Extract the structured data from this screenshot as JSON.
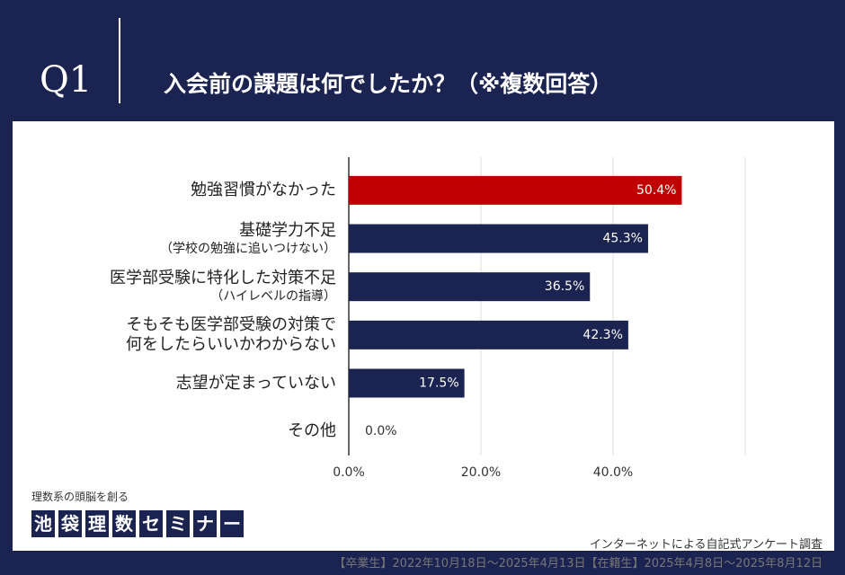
{
  "header": {
    "number": "Q1",
    "title": "入会前の課題は何でしたか？（※複数回答）"
  },
  "chart_data": {
    "type": "bar",
    "orientation": "horizontal",
    "categories": [
      "勉強習慣がなかった",
      "基礎学力不足",
      "医学部受験に特化した対策不足",
      "そもそも医学部受験の対策で\n何をしたらいいかわからない",
      "志望が定まっていない",
      "その他"
    ],
    "category_notes": [
      null,
      "（学校の勉強に追いつけない）",
      "（ハイレベルの指導）",
      null,
      null,
      null
    ],
    "values": [
      50.4,
      45.3,
      36.5,
      42.3,
      17.5,
      0.0
    ],
    "value_labels": [
      "50.4%",
      "45.3%",
      "36.5%",
      "42.3%",
      "17.5%",
      "0.0%"
    ],
    "colors": [
      "#c00000",
      "#1b2350",
      "#1b2350",
      "#1b2350",
      "#1b2350",
      "#1b2350"
    ],
    "xlim": [
      0,
      60
    ],
    "xticks": [
      {
        "value": 0,
        "label": "0.0%"
      },
      {
        "value": 20,
        "label": "20.0%"
      },
      {
        "value": 40,
        "label": "40.0%"
      }
    ],
    "grid": true
  },
  "footer": {
    "tagline": "理数系の頭脳を創る",
    "logo": "池袋理数セミナー",
    "method": "インターネットによる自記式アンケート調査",
    "period": "【卒業生】2022年10月18日～2025年4月13日【在籍生】2025年4月8日～2025年8月12日"
  }
}
